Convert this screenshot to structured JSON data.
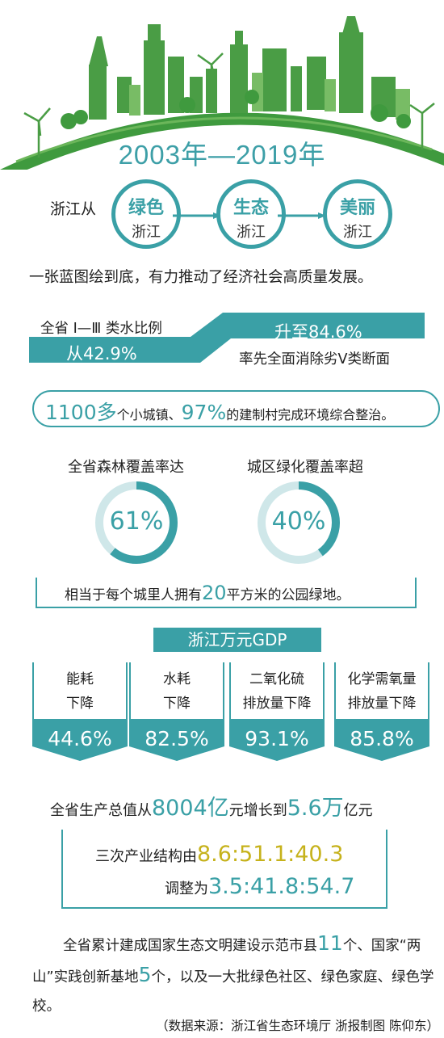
{
  "header": {
    "title": "2003年—2019年"
  },
  "flow": {
    "prefix": "浙江从",
    "steps": [
      {
        "top": "绿色",
        "bottom": "浙江"
      },
      {
        "top": "生态",
        "bottom": "浙江"
      },
      {
        "top": "美丽",
        "bottom": "浙江"
      }
    ]
  },
  "intro": "一张蓝图绘到底，有力推动了经济社会高质量发展。",
  "water": {
    "label": "全省 Ⅰ—Ⅲ 类水比例",
    "from": "从42.9%",
    "to": "升至84.6%",
    "note": "率先全面消除劣Ⅴ类断面"
  },
  "towns": {
    "n1": "1100",
    "t1": "多",
    "t2": "个小城镇、",
    "n2": "97%",
    "t3": "的建制村完成环境综合整治。"
  },
  "coverage": {
    "forest_label": "全省森林覆盖率达",
    "forest_value": "61%",
    "forest_fraction": 0.61,
    "urban_label": "城区绿化覆盖率超",
    "urban_value": "40%",
    "urban_fraction": 0.4,
    "park_pre": "相当于每个城里人拥有",
    "park_num": "20",
    "park_post": "平方米的公园绿地。"
  },
  "gdp": {
    "header": "浙江万元GDP",
    "cards": [
      {
        "line1": "能耗",
        "line2": "下降",
        "value": "44.6%"
      },
      {
        "line1": "水耗",
        "line2": "下降",
        "value": "82.5%"
      },
      {
        "line1": "二氧化硫",
        "line2": "排放量下降",
        "value": "93.1%"
      },
      {
        "line1": "化学需氧量",
        "line2": "排放量下降",
        "value": "85.8%"
      }
    ],
    "total_pre": "全省生产总值从",
    "total_n1": "8004",
    "total_u1": "亿",
    "total_mid": "元增长到",
    "total_n2": "5.6",
    "total_u2": "万",
    "total_post": "亿元"
  },
  "structure": {
    "line1_pre": "三次产业结构由",
    "line1_val": "8.6:51.1:40.3",
    "line2_pre": "调整为",
    "line2_val": "3.5:41.8:54.7"
  },
  "demo": {
    "p1": "全省累计建成国家生态文明建设示范市县",
    "n1": "11",
    "p2": "个、国家“两山”实践创新基地",
    "n2": "5",
    "p3": "个，以及一大批绿色社区、绿色家庭、绿色学校。"
  },
  "source": "（数据来源：浙江省生态环境厅 浙报制图 陈仰东）",
  "colors": {
    "teal": "#3aa0a6",
    "green": "#4a9d45",
    "gold": "#c6b21b"
  }
}
